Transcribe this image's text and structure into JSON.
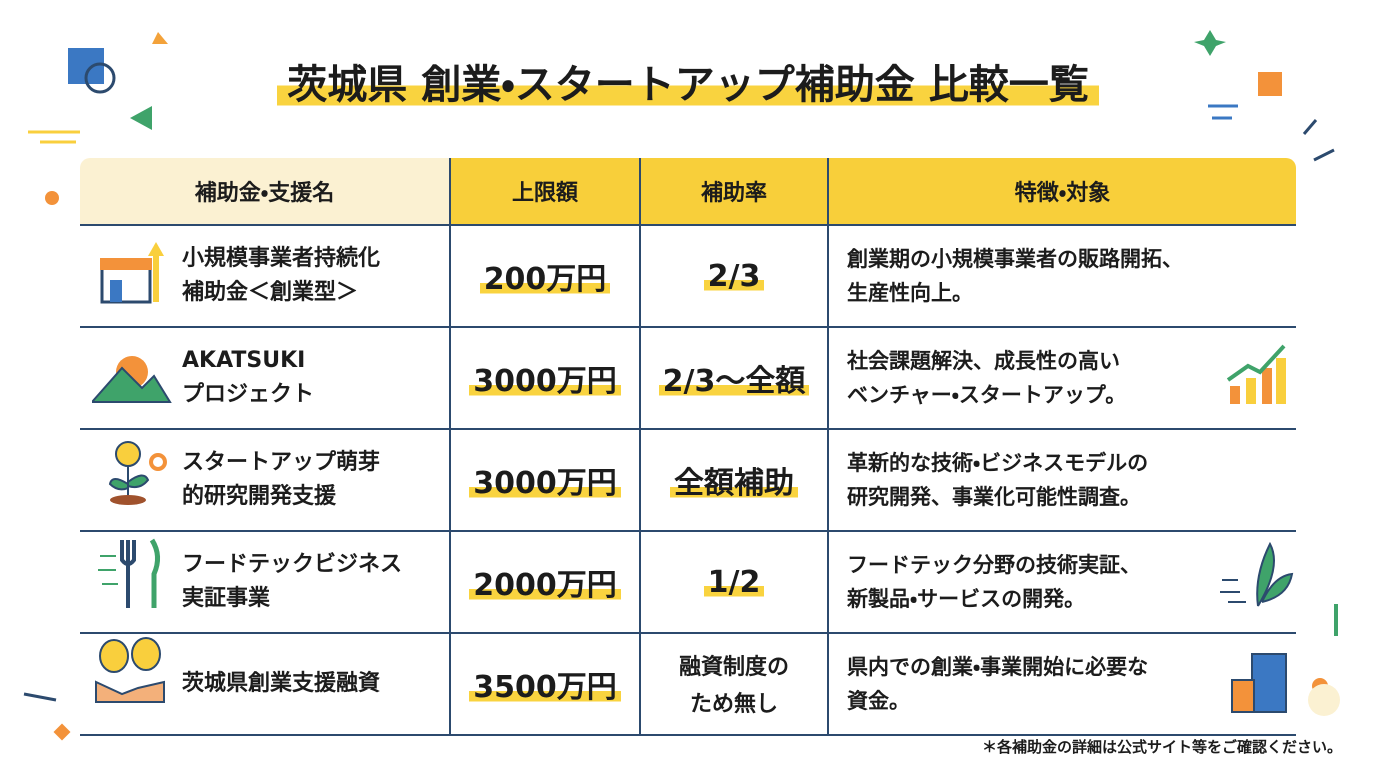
{
  "header": {
    "title": "茨城県 創業・スタートアップ補助金 比較一覧"
  },
  "table": {
    "columns": [
      "補助金・支援名",
      "上限額",
      "補助率",
      "特徴・対象"
    ],
    "rows": [
      [
        "小規模事業者持続化\n補助金＜創業型＞",
        "200万円",
        "2/3",
        "創業期の小規模事業者の販路開拓、\n生産性向上。"
      ],
      [
        "AKATSUKI\nプロジェクト",
        "3000万円",
        "2/3～全額",
        "社会課題解決、成長性の高い\nベンチャー・スタートアップ。"
      ],
      [
        "スタートアップ萌芽\n的研究開発支援",
        "3000万円",
        "全額補助",
        "革新的な技術・ビジネスモデルの\n研究開発、事業化可能性調査。"
      ],
      [
        "フードテックビジネス\n実証事業",
        "2000万円",
        "1/2",
        "フードテック分野の技術実証、\n新製品・サービスの開発。"
      ],
      [
        "茨城県創業支援融資",
        "3500万円",
        "融資制度の\nため無し",
        "県内での創業・事業開始に必要な\n資金。"
      ]
    ]
  },
  "footer": {
    "note": "＊各補助金の詳細は公式サイト等をご確認ください。"
  }
}
